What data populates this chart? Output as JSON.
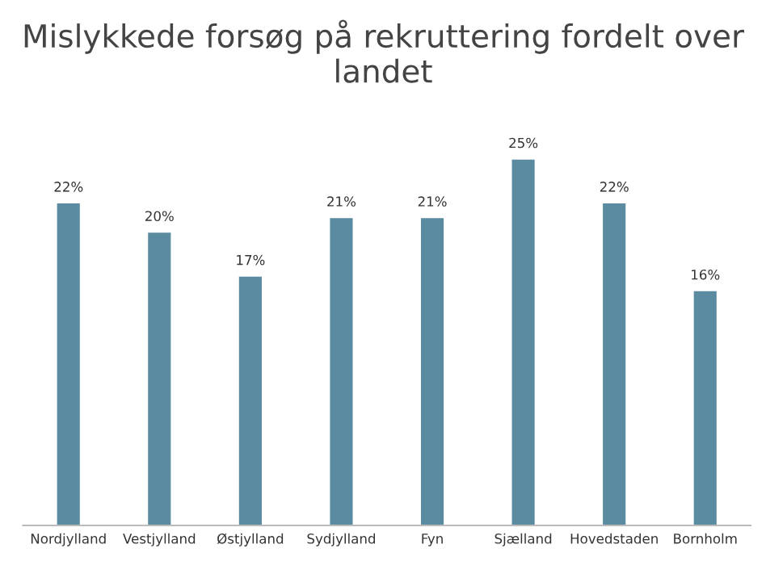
{
  "chart_data": {
    "type": "bar",
    "title": "Mislykkede forsøg på rekruttering fordelt over landet",
    "categories": [
      "Nordjylland",
      "Vestjylland",
      "Østjylland",
      "Sydjylland",
      "Fyn",
      "Sjælland",
      "Hovedstaden",
      "Bornholm"
    ],
    "values": [
      22,
      20,
      17,
      21,
      21,
      25,
      22,
      16
    ],
    "value_labels": [
      "22%",
      "20%",
      "17%",
      "21%",
      "21%",
      "25%",
      "22%",
      "16%"
    ],
    "color": "#5b8ba1",
    "grid": false,
    "legend": false
  }
}
